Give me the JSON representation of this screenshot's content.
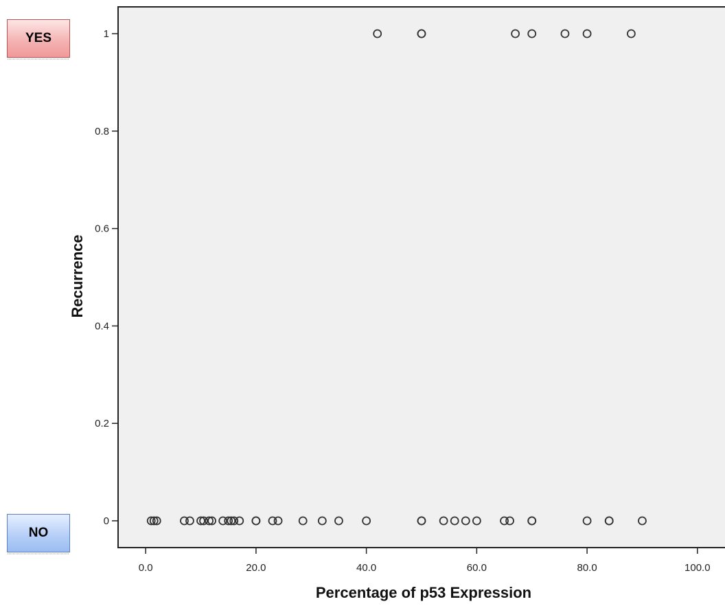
{
  "badges": {
    "yes": "YES",
    "no": "NO"
  },
  "chart_data": {
    "type": "scatter",
    "xlabel": "Percentage of p53 Expression",
    "ylabel": "Recurrence",
    "xlim": [
      -5,
      105
    ],
    "ylim": [
      -0.055,
      1.055
    ],
    "x_ticks": [
      0,
      20,
      40,
      60,
      80,
      100
    ],
    "x_tick_labels": [
      "0.0",
      "20.0",
      "40.0",
      "60.0",
      "80.0",
      "100.0"
    ],
    "y_ticks": [
      0,
      0.2,
      0.4,
      0.6,
      0.8,
      1
    ],
    "y_tick_labels": [
      "0",
      "0.2",
      "0.4",
      "0.6",
      "0.8",
      "1"
    ],
    "grid": false,
    "marker": "hollow-circle",
    "plot_background": "#f0f0f0",
    "marker_color": "#333333",
    "points": [
      {
        "x": 42,
        "y": 1
      },
      {
        "x": 50,
        "y": 1
      },
      {
        "x": 50,
        "y": 1
      },
      {
        "x": 67,
        "y": 1
      },
      {
        "x": 70,
        "y": 1
      },
      {
        "x": 76,
        "y": 1
      },
      {
        "x": 80,
        "y": 1
      },
      {
        "x": 88,
        "y": 1
      },
      {
        "x": 1,
        "y": 0
      },
      {
        "x": 1.5,
        "y": 0
      },
      {
        "x": 2,
        "y": 0
      },
      {
        "x": 7,
        "y": 0
      },
      {
        "x": 8,
        "y": 0
      },
      {
        "x": 10,
        "y": 0
      },
      {
        "x": 10.5,
        "y": 0
      },
      {
        "x": 11.5,
        "y": 0
      },
      {
        "x": 12,
        "y": 0
      },
      {
        "x": 14,
        "y": 0
      },
      {
        "x": 15,
        "y": 0
      },
      {
        "x": 15.5,
        "y": 0
      },
      {
        "x": 16,
        "y": 0
      },
      {
        "x": 17,
        "y": 0
      },
      {
        "x": 20,
        "y": 0
      },
      {
        "x": 20,
        "y": 0
      },
      {
        "x": 23,
        "y": 0
      },
      {
        "x": 24,
        "y": 0
      },
      {
        "x": 28.5,
        "y": 0
      },
      {
        "x": 32,
        "y": 0
      },
      {
        "x": 35,
        "y": 0
      },
      {
        "x": 40,
        "y": 0
      },
      {
        "x": 50,
        "y": 0
      },
      {
        "x": 50,
        "y": 0
      },
      {
        "x": 54,
        "y": 0
      },
      {
        "x": 56,
        "y": 0
      },
      {
        "x": 58,
        "y": 0
      },
      {
        "x": 60,
        "y": 0
      },
      {
        "x": 65,
        "y": 0
      },
      {
        "x": 66,
        "y": 0
      },
      {
        "x": 70,
        "y": 0
      },
      {
        "x": 70,
        "y": 0
      },
      {
        "x": 80,
        "y": 0
      },
      {
        "x": 84,
        "y": 0
      },
      {
        "x": 84,
        "y": 0
      },
      {
        "x": 90,
        "y": 0
      }
    ]
  }
}
